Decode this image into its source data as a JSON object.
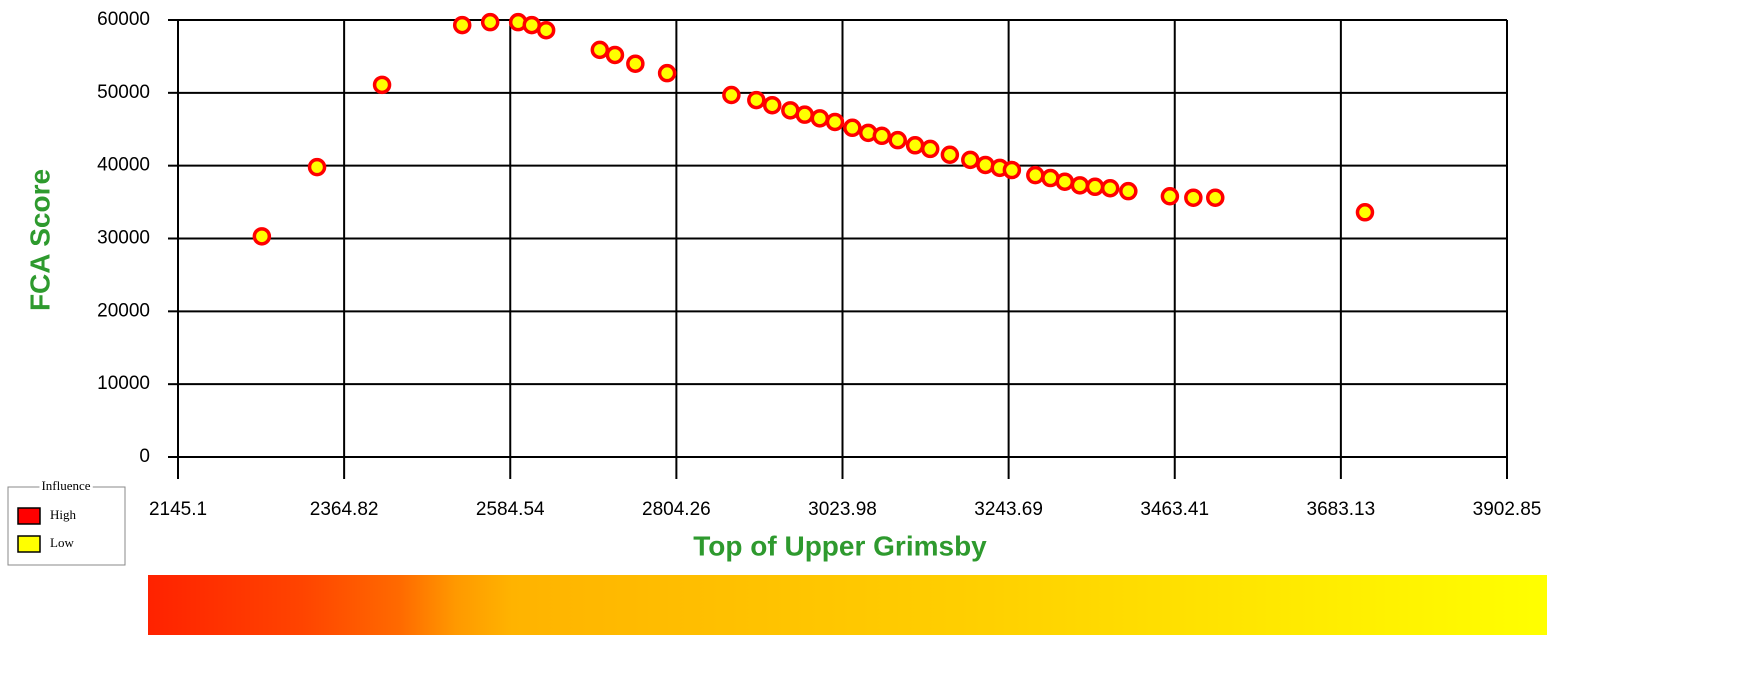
{
  "chart_data": {
    "type": "scatter",
    "xlabel": "Top of Upper Grimsby",
    "ylabel": "FCA Score",
    "xlim": [
      2145.1,
      3902.85
    ],
    "xticks": [
      2145.1,
      2364.82,
      2584.54,
      2804.26,
      3023.98,
      3243.69,
      3463.41,
      3683.13,
      3902.85
    ],
    "ylim": [
      0,
      60000
    ],
    "yticks": [
      0,
      10000,
      20000,
      30000,
      40000,
      50000,
      60000
    ],
    "grid": true,
    "series": [
      {
        "color": "#ffff00",
        "edgecolor": "#ff0000",
        "x": [
          2256,
          2329,
          2415,
          2521,
          2558,
          2595,
          2613,
          2632,
          2703,
          2723,
          2750,
          2792,
          2877,
          2910,
          2931,
          2955,
          2974,
          2994,
          3014,
          3037,
          3058,
          3076,
          3097,
          3120,
          3140,
          3166,
          3193,
          3213,
          3232,
          3248,
          3279,
          3299,
          3318,
          3338,
          3358,
          3378,
          3402,
          3457,
          3488,
          3517,
          3715
        ],
        "values": [
          30300,
          39800,
          51100,
          59300,
          59700,
          59700,
          59300,
          58600,
          55900,
          55200,
          54000,
          52700,
          49700,
          49000,
          48300,
          47600,
          47000,
          46500,
          46000,
          45200,
          44500,
          44100,
          43500,
          42800,
          42300,
          41500,
          40800,
          40100,
          39700,
          39400,
          38700,
          38300,
          37800,
          37300,
          37100,
          36900,
          36500,
          35800,
          35600,
          35600,
          33600
        ]
      }
    ],
    "legend": {
      "title": "Influence",
      "items": [
        {
          "label": "High",
          "color": "#ff0000"
        },
        {
          "label": "Low",
          "color": "#ffff00"
        }
      ]
    }
  }
}
